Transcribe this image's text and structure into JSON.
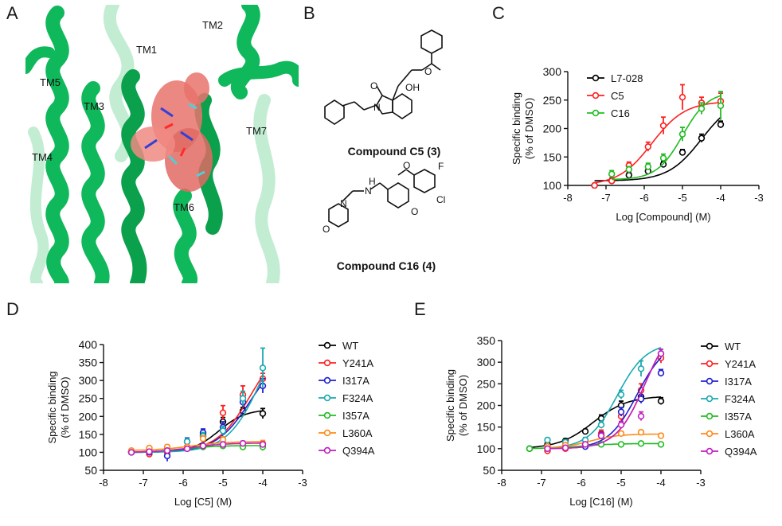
{
  "panels": {
    "a": "A",
    "b": "B",
    "c": "C",
    "d": "D",
    "e": "E"
  },
  "structure": {
    "labels": [
      "TM1",
      "TM2",
      "TM3",
      "TM4",
      "TM5",
      "TM6",
      "TM7"
    ],
    "helix_color": "#0fb85a",
    "ligand_color": "#e8736c"
  },
  "compounds": {
    "c5_caption": "Compound C5 (3)",
    "c16_caption": "Compound C16 (4)",
    "atom_labels": [
      "O",
      "O",
      "OH",
      "N",
      "F",
      "O",
      "Cl",
      "O",
      "H",
      "N",
      "N",
      "O"
    ]
  },
  "chart_data": [
    {
      "id": "C",
      "type": "scatter",
      "xlabel": "Log [Compound] (M)",
      "ylabel": [
        "Specific binding",
        "(% of DMSO)"
      ],
      "xlim": [
        -8,
        -3
      ],
      "ylim": [
        100,
        300
      ],
      "xticks": [
        -8,
        -7,
        -6,
        -5,
        -4,
        -3
      ],
      "yticks": [
        100,
        150,
        200,
        250,
        300
      ],
      "legend_position": "top-left",
      "series": [
        {
          "name": "L7-028",
          "color": "#000000",
          "x": [
            -7.3,
            -6.85,
            -6.4,
            -5.9,
            -5.5,
            -5.0,
            -4.5,
            -4.0
          ],
          "y": [
            100,
            108,
            118,
            125,
            137,
            158,
            183,
            207
          ],
          "err": [
            0,
            5,
            5,
            4,
            5,
            5,
            7,
            6
          ],
          "fit": {
            "bottom": 108,
            "top": 255,
            "logec50": -4.5,
            "hill": 1.0
          }
        },
        {
          "name": "C5",
          "color": "#ff2020",
          "x": [
            -7.3,
            -6.85,
            -6.4,
            -5.9,
            -5.5,
            -5.0,
            -4.5,
            -4.0
          ],
          "y": [
            100,
            108,
            135,
            168,
            205,
            255,
            245,
            248
          ],
          "err": [
            0,
            4,
            6,
            8,
            15,
            22,
            10,
            14
          ],
          "fit": {
            "bottom": 100,
            "top": 248,
            "logec50": -5.8,
            "hill": 1.0
          }
        },
        {
          "name": "C16",
          "color": "#22bb22",
          "x": [
            -6.85,
            -6.4,
            -5.9,
            -5.5,
            -5.0,
            -4.5,
            -4.0
          ],
          "y": [
            120,
            128,
            133,
            148,
            190,
            235,
            240
          ],
          "err": [
            6,
            5,
            6,
            7,
            12,
            10,
            25
          ],
          "fit": {
            "bottom": 110,
            "top": 265,
            "logec50": -5.0,
            "hill": 1.3
          }
        }
      ]
    },
    {
      "id": "D",
      "type": "scatter",
      "xlabel": "Log [C5] (M)",
      "ylabel": [
        "Specific binding",
        "(% of DMSO)"
      ],
      "xlim": [
        -8,
        -3
      ],
      "ylim": [
        50,
        400
      ],
      "xticks": [
        -8,
        -7,
        -6,
        -5,
        -4,
        -3
      ],
      "yticks": [
        50,
        100,
        150,
        200,
        250,
        300,
        350,
        400
      ],
      "legend_position": "right",
      "series": [
        {
          "name": "WT",
          "color": "#000000",
          "x": [
            -7.3,
            -6.85,
            -6.4,
            -5.9,
            -5.5,
            -5.0,
            -4.5,
            -4.0
          ],
          "y": [
            100,
            103,
            105,
            115,
            150,
            185,
            215,
            208
          ],
          "err": [
            0,
            4,
            6,
            6,
            6,
            12,
            10,
            14
          ],
          "fit": {
            "bottom": 100,
            "top": 220,
            "logec50": -5.1,
            "hill": 1.3
          }
        },
        {
          "name": "Y241A",
          "color": "#ff2020",
          "x": [
            -7.3,
            -6.85,
            -6.4,
            -5.9,
            -5.5,
            -5.0,
            -4.5,
            -4.0
          ],
          "y": [
            100,
            95,
            100,
            115,
            145,
            210,
            260,
            305
          ],
          "err": [
            0,
            5,
            6,
            8,
            10,
            20,
            25,
            15
          ],
          "fit": {
            "bottom": 100,
            "top": 420,
            "logec50": -4.3,
            "hill": 1.0
          }
        },
        {
          "name": "I317A",
          "color": "#2020d0",
          "x": [
            -7.3,
            -6.85,
            -6.4,
            -5.9,
            -5.5,
            -5.0,
            -4.5,
            -4.0
          ],
          "y": [
            100,
            100,
            90,
            130,
            155,
            170,
            240,
            285
          ],
          "err": [
            0,
            5,
            15,
            10,
            10,
            15,
            15,
            20
          ],
          "fit": {
            "bottom": 100,
            "top": 390,
            "logec50": -4.3,
            "hill": 1.0
          }
        },
        {
          "name": "F324A",
          "color": "#1aaab0",
          "x": [
            -7.3,
            -6.85,
            -6.4,
            -5.9,
            -5.5,
            -5.0,
            -4.5,
            -4.0
          ],
          "y": [
            100,
            105,
            110,
            130,
            145,
            160,
            250,
            335
          ],
          "err": [
            0,
            5,
            5,
            8,
            10,
            12,
            20,
            55
          ],
          "fit": {
            "bottom": 100,
            "top": 520,
            "logec50": -4.0,
            "hill": 1.0
          }
        },
        {
          "name": "I357A",
          "color": "#22bb22",
          "x": [
            -7.3,
            -6.85,
            -6.4,
            -5.9,
            -5.5,
            -5.0,
            -4.5,
            -4.0
          ],
          "y": [
            100,
            105,
            108,
            110,
            115,
            118,
            115,
            115
          ],
          "err": [
            0,
            5,
            5,
            5,
            5,
            5,
            8,
            10
          ],
          "fit": {
            "bottom": 100,
            "top": 119,
            "logec50": -6.0,
            "hill": 1.0
          }
        },
        {
          "name": "L360A",
          "color": "#ff8a1a",
          "x": [
            -7.3,
            -6.85,
            -6.4,
            -5.9,
            -5.5,
            -5.0,
            -4.5,
            -4.0
          ],
          "y": [
            105,
            112,
            115,
            115,
            138,
            135,
            125,
            125
          ],
          "err": [
            0,
            5,
            5,
            5,
            8,
            8,
            6,
            8
          ],
          "fit": {
            "bottom": 105,
            "top": 130,
            "logec50": -5.8,
            "hill": 1.0
          }
        },
        {
          "name": "Q394A",
          "color": "#c020c0",
          "x": [
            -7.3,
            -6.85,
            -6.4,
            -5.9,
            -5.5,
            -5.0,
            -4.5,
            -4.0
          ],
          "y": [
            100,
            102,
            105,
            110,
            118,
            122,
            125,
            122
          ],
          "err": [
            0,
            5,
            5,
            5,
            5,
            6,
            6,
            6
          ],
          "fit": {
            "bottom": 100,
            "top": 126,
            "logec50": -5.8,
            "hill": 1.0
          }
        }
      ]
    },
    {
      "id": "E",
      "type": "scatter",
      "xlabel": "Log [C16] (M)",
      "ylabel": [
        "Specific binding",
        "(% of DMSO)"
      ],
      "xlim": [
        -8,
        -3
      ],
      "ylim": [
        50,
        350
      ],
      "xticks": [
        -8,
        -7,
        -6,
        -5,
        -4,
        -3
      ],
      "yticks": [
        50,
        100,
        150,
        200,
        250,
        300,
        350
      ],
      "legend_position": "right",
      "series": [
        {
          "name": "WT",
          "color": "#000000",
          "x": [
            -7.3,
            -6.85,
            -6.4,
            -5.9,
            -5.5,
            -5.0,
            -4.5,
            -4.0
          ],
          "y": [
            100,
            110,
            118,
            140,
            170,
            200,
            220,
            210
          ],
          "err": [
            0,
            5,
            5,
            5,
            8,
            10,
            12,
            8
          ],
          "fit": {
            "bottom": 100,
            "top": 222,
            "logec50": -5.7,
            "hill": 1.0
          }
        },
        {
          "name": "Y241A",
          "color": "#ff2020",
          "x": [
            -6.85,
            -6.4,
            -5.9,
            -5.5,
            -5.0,
            -4.5,
            -4.0
          ],
          "y": [
            95,
            100,
            110,
            135,
            175,
            235,
            310
          ],
          "err": [
            5,
            5,
            5,
            8,
            10,
            15,
            12
          ],
          "fit": {
            "bottom": 100,
            "top": 400,
            "logec50": -4.4,
            "hill": 1.2
          }
        },
        {
          "name": "I317A",
          "color": "#2020d0",
          "x": [
            -6.85,
            -6.4,
            -5.9,
            -5.5,
            -5.0,
            -4.5,
            -4.0
          ],
          "y": [
            100,
            105,
            105,
            130,
            185,
            215,
            275
          ],
          "err": [
            5,
            5,
            5,
            8,
            10,
            10,
            8
          ],
          "fit": {
            "bottom": 100,
            "top": 350,
            "logec50": -4.6,
            "hill": 1.2
          }
        },
        {
          "name": "F324A",
          "color": "#1aaab0",
          "x": [
            -6.85,
            -6.4,
            -5.9,
            -5.5,
            -5.0,
            -4.5,
            -4.0
          ],
          "y": [
            120,
            115,
            120,
            155,
            225,
            285,
            320
          ],
          "err": [
            5,
            5,
            6,
            8,
            10,
            18,
            10
          ],
          "fit": {
            "bottom": 100,
            "top": 345,
            "logec50": -5.1,
            "hill": 1.2
          }
        },
        {
          "name": "I357A",
          "color": "#22bb22",
          "x": [
            -7.3,
            -6.85,
            -6.4,
            -5.9,
            -5.5,
            -5.0,
            -4.5,
            -4.0
          ],
          "y": [
            100,
            105,
            105,
            110,
            110,
            110,
            112,
            110
          ],
          "err": [
            0,
            4,
            4,
            4,
            4,
            4,
            4,
            4
          ],
          "fit": {
            "bottom": 100,
            "top": 112,
            "logec50": -6.0,
            "hill": 1.0
          }
        },
        {
          "name": "L360A",
          "color": "#ff8a1a",
          "x": [
            -6.85,
            -6.4,
            -5.9,
            -5.5,
            -5.0,
            -4.5,
            -4.0
          ],
          "y": [
            105,
            108,
            110,
            130,
            135,
            138,
            130
          ],
          "err": [
            4,
            4,
            4,
            5,
            5,
            5,
            5
          ],
          "fit": {
            "bottom": 100,
            "top": 134,
            "logec50": -5.8,
            "hill": 1.2
          }
        },
        {
          "name": "Q394A",
          "color": "#c020c0",
          "x": [
            -6.85,
            -6.4,
            -5.9,
            -5.5,
            -5.0,
            -4.5,
            -4.0
          ],
          "y": [
            100,
            102,
            110,
            130,
            155,
            175,
            320
          ],
          "err": [
            4,
            4,
            5,
            6,
            8,
            10,
            10
          ],
          "fit": {
            "bottom": 100,
            "top": 400,
            "logec50": -4.4,
            "hill": 1.2
          }
        }
      ]
    }
  ]
}
